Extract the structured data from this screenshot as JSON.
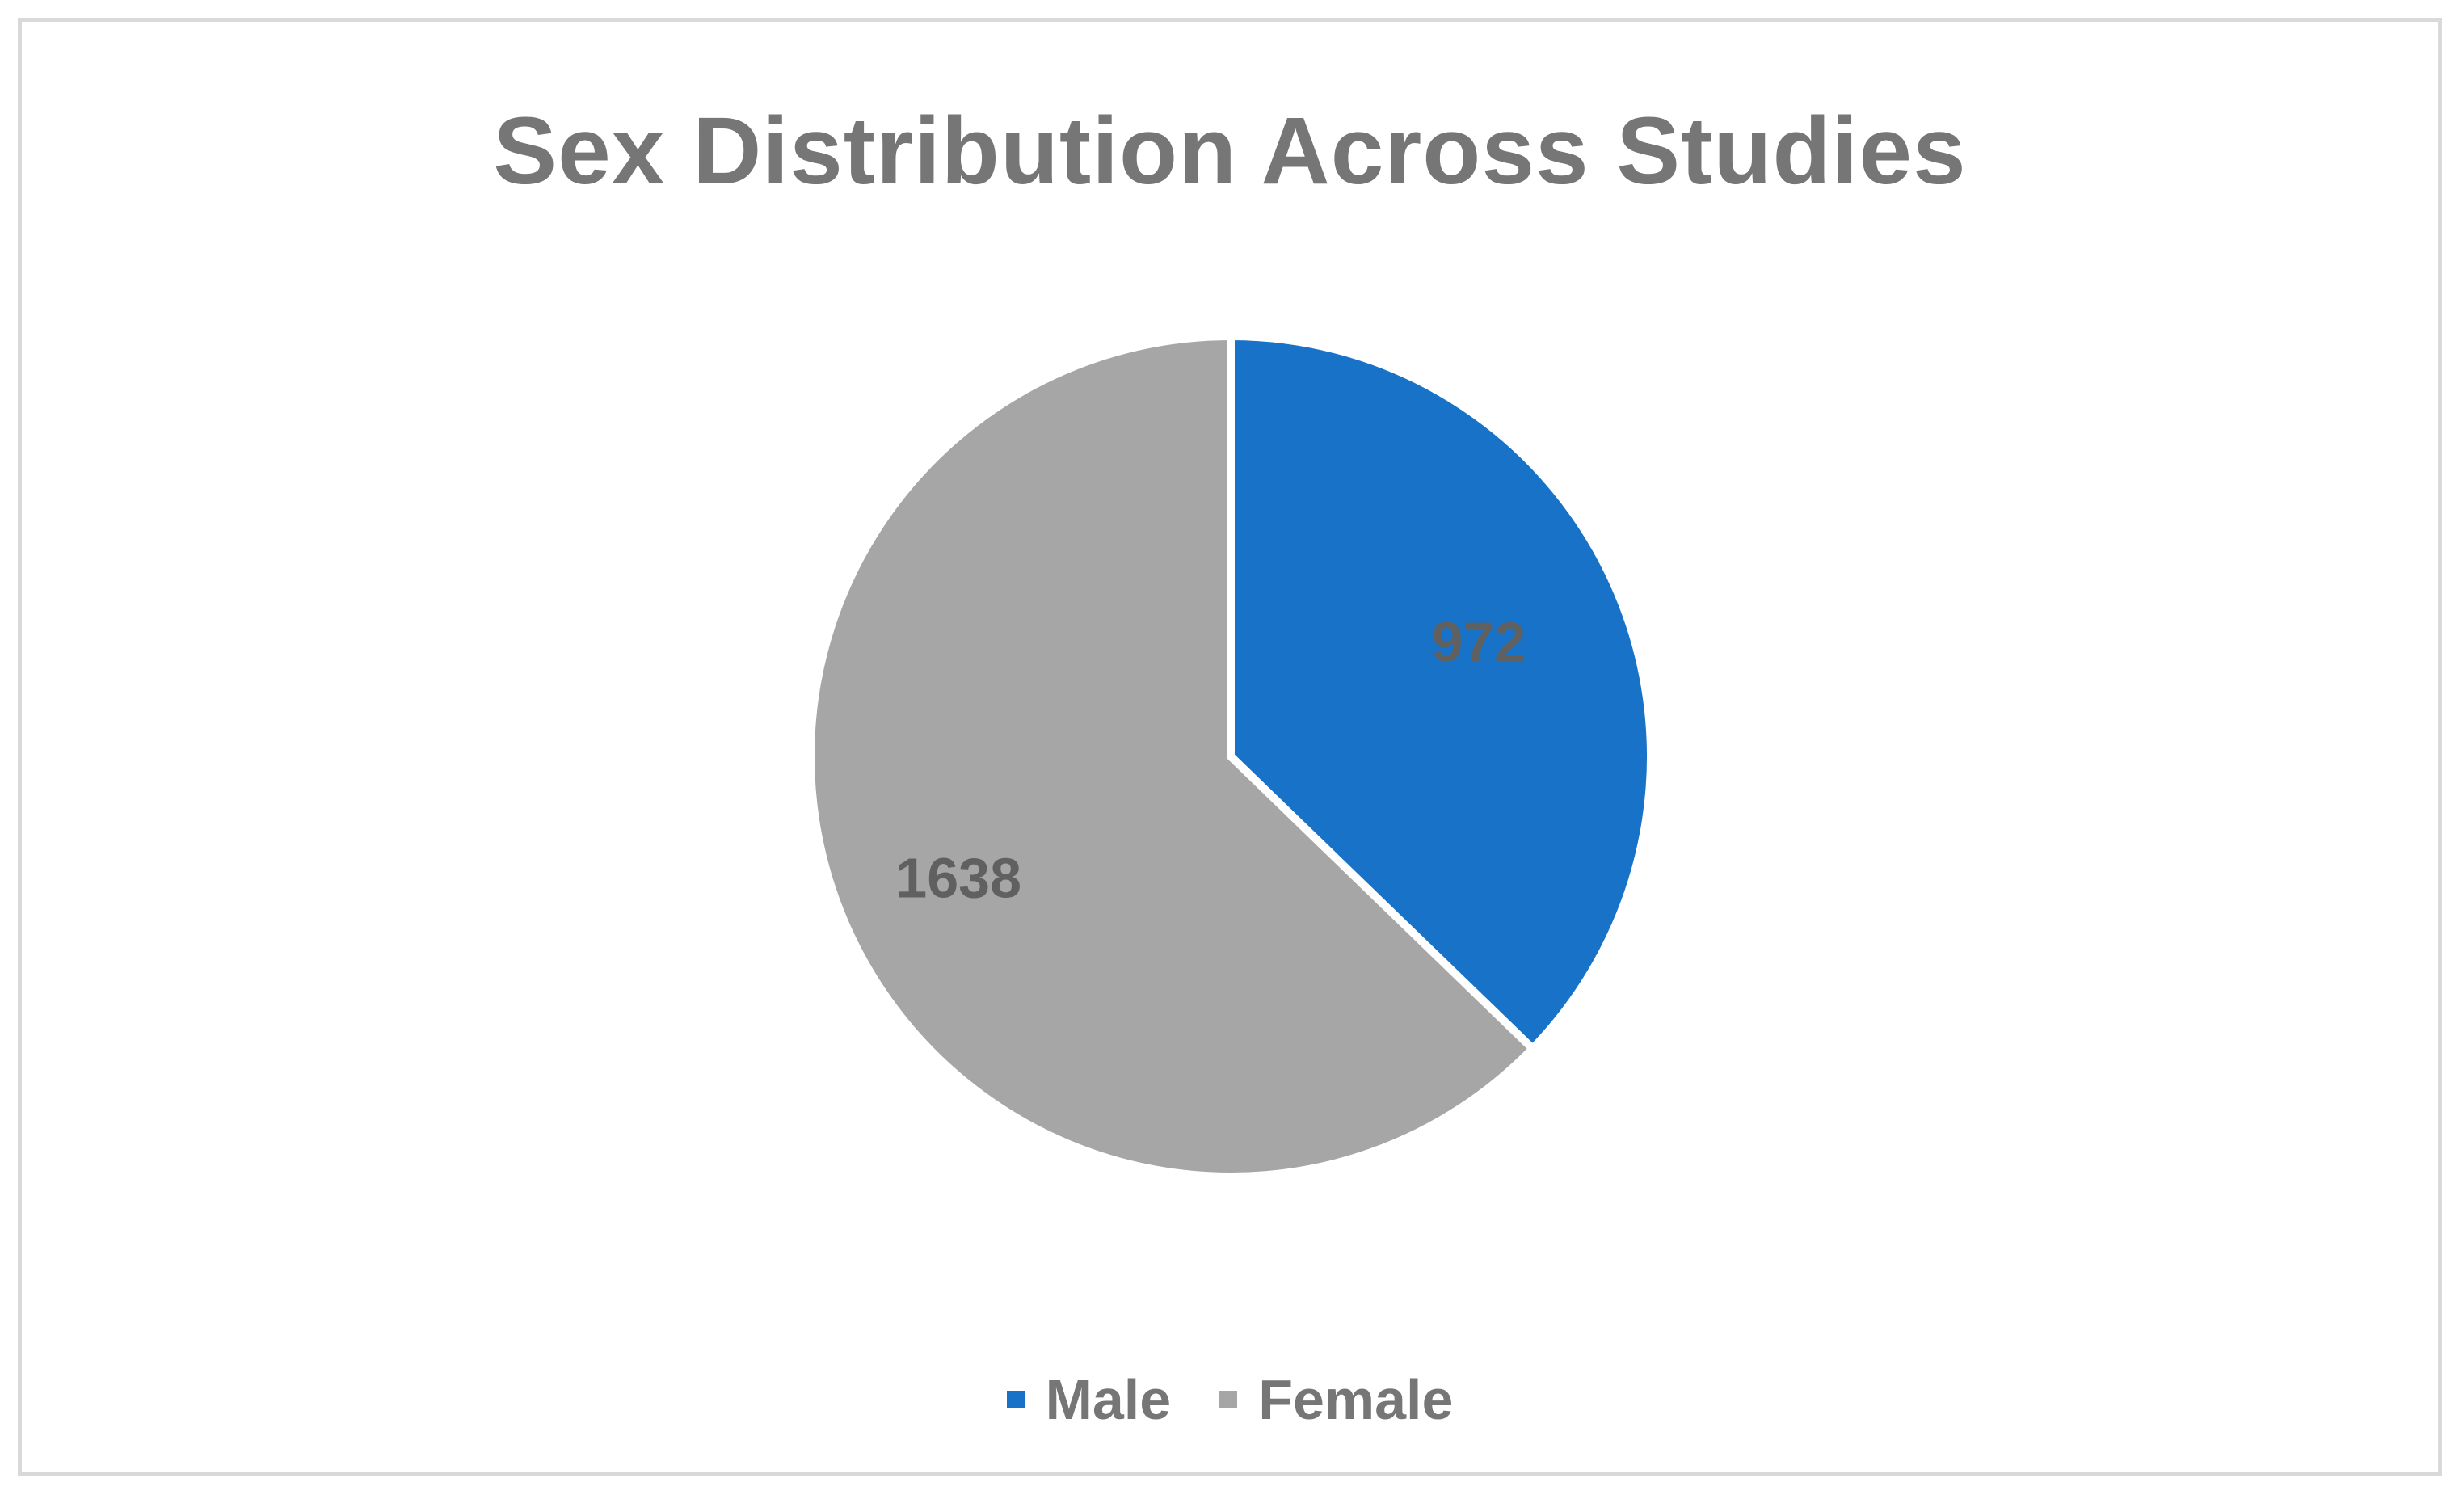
{
  "chart_data": {
    "type": "pie",
    "title": "Sex Distribution Across Studies",
    "slices": [
      {
        "label": "Male",
        "value": 972,
        "color": "#1772C8"
      },
      {
        "label": "Female",
        "value": 1638,
        "color": "#A6A6A6"
      }
    ],
    "legend_position": "bottom",
    "start_angle": "12 o'clock, clockwise",
    "separator_color": "#ffffff"
  }
}
